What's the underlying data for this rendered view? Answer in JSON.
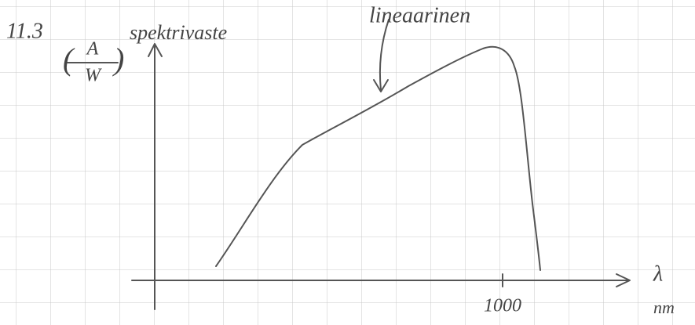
{
  "header": {
    "number": "11.3",
    "y_label": "spektrivaste",
    "unit_numerator": "A",
    "unit_denominator": "W"
  },
  "annotation": {
    "label": "lineaarinen"
  },
  "x_axis": {
    "symbol": "λ",
    "unit": "nm",
    "tick_label": "1000"
  }
}
